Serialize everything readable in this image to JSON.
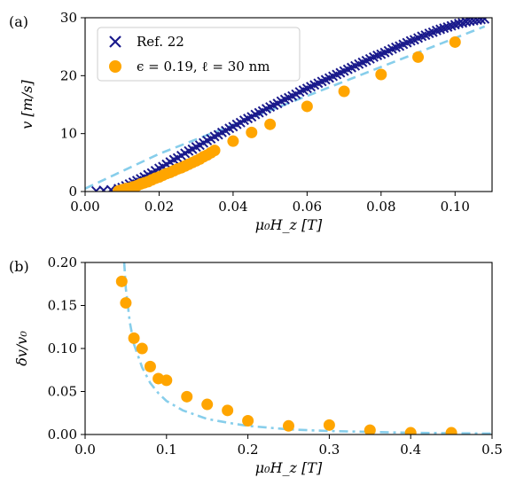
{
  "chart_data": [
    {
      "panel_label": "(a)",
      "type": "scatter",
      "xlabel": "μ₀H_z [T]",
      "ylabel": "v [m/s]",
      "xlim": [
        0.0,
        0.11
      ],
      "ylim": [
        0,
        30
      ],
      "xticks": [
        "0.00",
        "0.02",
        "0.04",
        "0.06",
        "0.08",
        "0.10"
      ],
      "yticks": [
        "0",
        "10",
        "20",
        "30"
      ],
      "legend_position": "top-left",
      "series": [
        {
          "name": "Ref. 22",
          "marker": "x",
          "color": "#1a1a8c",
          "x": [
            0.003,
            0.005,
            0.007,
            0.009,
            0.01,
            0.011,
            0.012,
            0.013,
            0.014,
            0.015,
            0.016,
            0.017,
            0.018,
            0.019,
            0.02,
            0.021,
            0.022,
            0.023,
            0.024,
            0.025,
            0.026,
            0.027,
            0.028,
            0.029,
            0.03,
            0.031,
            0.032,
            0.033,
            0.034,
            0.035,
            0.036,
            0.037,
            0.038,
            0.039,
            0.04,
            0.041,
            0.042,
            0.043,
            0.044,
            0.045,
            0.046,
            0.047,
            0.048,
            0.049,
            0.05,
            0.051,
            0.052,
            0.053,
            0.054,
            0.055,
            0.056,
            0.057,
            0.058,
            0.059,
            0.06,
            0.061,
            0.062,
            0.063,
            0.064,
            0.065,
            0.066,
            0.067,
            0.068,
            0.069,
            0.07,
            0.071,
            0.072,
            0.073,
            0.074,
            0.075,
            0.076,
            0.077,
            0.078,
            0.079,
            0.08,
            0.081,
            0.082,
            0.083,
            0.084,
            0.085,
            0.086,
            0.087,
            0.088,
            0.089,
            0.09,
            0.091,
            0.092,
            0.093,
            0.094,
            0.095,
            0.096,
            0.097,
            0.098,
            0.099,
            0.1,
            0.101,
            0.102,
            0.103,
            0.104,
            0.105,
            0.106,
            0.107,
            0.108
          ],
          "y": [
            0.1,
            0.2,
            0.3,
            0.5,
            0.7,
            1.0,
            1.3,
            1.6,
            1.9,
            2.2,
            2.5,
            2.9,
            3.2,
            3.6,
            4.0,
            4.3,
            4.7,
            5.1,
            5.5,
            5.8,
            6.2,
            6.6,
            7.0,
            7.3,
            7.7,
            8.0,
            8.4,
            8.8,
            9.1,
            9.5,
            9.8,
            10.2,
            10.5,
            10.9,
            11.2,
            11.6,
            11.9,
            12.3,
            12.6,
            12.9,
            13.3,
            13.6,
            13.9,
            14.3,
            14.6,
            14.9,
            15.2,
            15.6,
            15.9,
            16.2,
            16.5,
            16.8,
            17.2,
            17.5,
            17.8,
            18.1,
            18.4,
            18.7,
            19.0,
            19.3,
            19.6,
            19.9,
            20.2,
            20.5,
            20.8,
            21.1,
            21.4,
            21.7,
            22.0,
            22.3,
            22.6,
            22.9,
            23.2,
            23.5,
            23.7,
            24.0,
            24.3,
            24.6,
            24.9,
            25.1,
            25.4,
            25.7,
            26.0,
            26.2,
            26.5,
            26.8,
            27.0,
            27.3,
            27.5,
            27.8,
            28.0,
            28.2,
            28.4,
            28.6,
            28.8,
            29.0,
            29.1,
            29.3,
            29.4,
            29.5,
            29.6,
            29.7,
            29.8
          ]
        },
        {
          "name": "ϵ = 0.19, ℓ = 30 nm",
          "marker": "o",
          "color": "#ffa500",
          "x": [
            0.009,
            0.01,
            0.011,
            0.012,
            0.013,
            0.014,
            0.015,
            0.016,
            0.017,
            0.018,
            0.019,
            0.02,
            0.021,
            0.022,
            0.023,
            0.024,
            0.025,
            0.026,
            0.027,
            0.028,
            0.029,
            0.03,
            0.031,
            0.032,
            0.033,
            0.034,
            0.035,
            0.04,
            0.045,
            0.05,
            0.06,
            0.07,
            0.08,
            0.09,
            0.1
          ],
          "y": [
            0.1,
            0.3,
            0.5,
            0.6,
            0.8,
            1.0,
            1.3,
            1.5,
            1.7,
            2.0,
            2.3,
            2.5,
            2.8,
            3.1,
            3.3,
            3.6,
            3.9,
            4.1,
            4.4,
            4.7,
            5.0,
            5.3,
            5.6,
            6.0,
            6.3,
            6.7,
            7.1,
            8.7,
            10.2,
            11.6,
            14.7,
            17.3,
            20.2,
            23.2,
            25.8
          ]
        },
        {
          "name": "",
          "style": "dashed",
          "color": "#87ceeb",
          "x": [
            0.0,
            0.01,
            0.02,
            0.03,
            0.04,
            0.05,
            0.06,
            0.07,
            0.08,
            0.09,
            0.1,
            0.108
          ],
          "y": [
            0.5,
            3.5,
            6.5,
            9.0,
            11.5,
            14.0,
            16.5,
            19.0,
            21.5,
            24.0,
            26.5,
            28.5
          ]
        }
      ]
    },
    {
      "panel_label": "(b)",
      "type": "scatter",
      "xlabel": "μ₀H_z [T]",
      "ylabel": "δv/v₀",
      "xlim": [
        0.0,
        0.5
      ],
      "ylim": [
        0.0,
        0.2
      ],
      "xticks": [
        "0.0",
        "0.1",
        "0.2",
        "0.3",
        "0.4",
        "0.5"
      ],
      "yticks": [
        "0.00",
        "0.05",
        "0.10",
        "0.15",
        "0.20"
      ],
      "series": [
        {
          "name": "",
          "marker": "o",
          "color": "#ffa500",
          "x": [
            0.045,
            0.05,
            0.06,
            0.07,
            0.08,
            0.09,
            0.1,
            0.125,
            0.15,
            0.175,
            0.2,
            0.25,
            0.3,
            0.35,
            0.4,
            0.45
          ],
          "y": [
            0.178,
            0.153,
            0.112,
            0.1,
            0.079,
            0.065,
            0.063,
            0.044,
            0.035,
            0.028,
            0.016,
            0.01,
            0.011,
            0.005,
            0.002,
            0.002
          ]
        },
        {
          "name": "",
          "style": "dashdot",
          "color": "#87ceeb",
          "x": [
            0.048,
            0.05,
            0.055,
            0.06,
            0.07,
            0.08,
            0.09,
            0.1,
            0.12,
            0.15,
            0.18,
            0.2,
            0.25,
            0.3,
            0.35,
            0.4,
            0.45,
            0.5
          ],
          "y": [
            0.2,
            0.17,
            0.13,
            0.105,
            0.078,
            0.06,
            0.048,
            0.039,
            0.028,
            0.018,
            0.013,
            0.01,
            0.006,
            0.004,
            0.003,
            0.002,
            0.0015,
            0.001
          ]
        }
      ]
    }
  ]
}
